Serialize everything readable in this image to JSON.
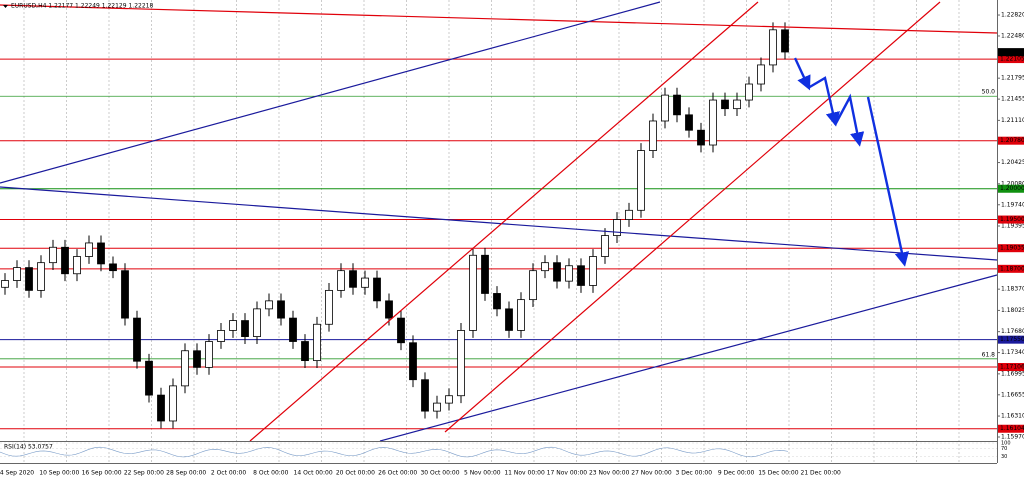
{
  "chart_data": {
    "type": "candlestick",
    "title": "EURUSD,H4  1.22177 1.22249 1.22129 1.22218",
    "current_price": 1.22218,
    "ylim": [
      1.15905,
      1.23064
    ],
    "yticks": [
      {
        "value": 1.2282,
        "label": "1.22820"
      },
      {
        "value": 1.2248,
        "label": "1.22480"
      },
      1.21795,
      1.21455,
      {
        "value": 1.2111,
        "label": "1.21110"
      },
      1.20425,
      {
        "value": 1.2008,
        "label": "1.20080"
      },
      {
        "value": 1.1974,
        "label": "1.19740"
      },
      1.19395,
      {
        "value": 1.1837,
        "label": "1.18370"
      },
      1.18025,
      {
        "value": 1.1768,
        "label": "1.17680"
      },
      {
        "value": 1.1734,
        "label": "1.17340"
      },
      1.16995,
      1.16655,
      {
        "value": 1.1631,
        "label": "1.16310"
      },
      {
        "value": 1.1597,
        "label": "1.15970"
      }
    ],
    "xtick_labels": [
      "4 Sep 2020",
      "10 Sep 00:00",
      "16 Sep 00:00",
      "22 Sep 00:00",
      "28 Sep 00:00",
      "2 Oct 00:00",
      "8 Oct 00:00",
      "14 Oct 00:00",
      "20 Oct 00:00",
      "26 Oct 00:00",
      "30 Oct 00:00",
      "5 Nov 00:00",
      "11 Nov 00:00",
      "17 Nov 00:00",
      "23 Nov 00:00",
      "27 Nov 00:00",
      "3 Dec 00:00",
      "9 Dec 00:00",
      "15 Dec 00:00",
      "21 Dec 00:00"
    ],
    "open": [
      1.184,
      1.1851,
      1.1872,
      1.1835,
      1.188,
      1.1905,
      1.1862,
      1.189,
      1.1912,
      1.1878,
      1.1867,
      1.179,
      1.172,
      1.1665,
      1.1623,
      1.168,
      1.1737,
      1.171,
      1.1752,
      1.177,
      1.1786,
      1.176,
      1.1805,
      1.1818,
      1.179,
      1.1752,
      1.1721,
      1.178,
      1.1835,
      1.1867,
      1.184,
      1.1855,
      1.1818,
      1.179,
      1.175,
      1.169,
      1.1639,
      1.1652,
      1.1664,
      1.177,
      1.1892,
      1.183,
      1.1805,
      1.177,
      1.182,
      1.1867,
      1.188,
      1.185,
      1.1875,
      1.1843,
      1.189,
      1.1924,
      1.195,
      1.1965,
      1.2062,
      1.211,
      1.2152,
      1.212,
      1.2095,
      1.2071,
      1.2144,
      1.213,
      1.2144,
      1.217,
      1.2201,
      1.2258
    ],
    "high": [
      1.1863,
      1.1884,
      1.1884,
      1.1892,
      1.1917,
      1.1917,
      1.1902,
      1.1924,
      1.1924,
      1.189,
      1.1879,
      1.1802,
      1.1732,
      1.1677,
      1.1692,
      1.1749,
      1.1749,
      1.1764,
      1.1782,
      1.1798,
      1.1798,
      1.1817,
      1.183,
      1.183,
      1.1802,
      1.1764,
      1.1792,
      1.1847,
      1.1879,
      1.1879,
      1.1867,
      1.1867,
      1.183,
      1.1802,
      1.1762,
      1.1702,
      1.1664,
      1.1676,
      1.1782,
      1.1904,
      1.1904,
      1.1842,
      1.1817,
      1.1832,
      1.1879,
      1.1892,
      1.1892,
      1.1887,
      1.1887,
      1.1902,
      1.1936,
      1.1962,
      1.1977,
      1.2074,
      1.2122,
      1.2164,
      1.2164,
      1.2132,
      1.2107,
      1.2156,
      1.2156,
      1.2156,
      1.2182,
      1.2213,
      1.227,
      1.227
    ],
    "low": [
      1.1828,
      1.1839,
      1.1823,
      1.1823,
      1.1868,
      1.185,
      1.185,
      1.1878,
      1.1866,
      1.1855,
      1.1778,
      1.1708,
      1.1653,
      1.1611,
      1.1611,
      1.1668,
      1.1698,
      1.1698,
      1.174,
      1.1758,
      1.1748,
      1.1748,
      1.1793,
      1.1778,
      1.174,
      1.1709,
      1.1709,
      1.1768,
      1.1823,
      1.1828,
      1.1828,
      1.1806,
      1.1778,
      1.1738,
      1.1678,
      1.1627,
      1.1627,
      1.164,
      1.1652,
      1.1758,
      1.1818,
      1.1793,
      1.1758,
      1.1758,
      1.1808,
      1.1855,
      1.1838,
      1.1838,
      1.1831,
      1.1831,
      1.1878,
      1.1912,
      1.1938,
      1.1953,
      1.205,
      1.2098,
      1.2108,
      1.2083,
      1.2059,
      1.2059,
      1.2118,
      1.2118,
      1.2132,
      1.2158,
      1.2189,
      1.221
    ],
    "close": [
      1.1851,
      1.1872,
      1.1835,
      1.188,
      1.1905,
      1.1862,
      1.189,
      1.1912,
      1.1878,
      1.1867,
      1.179,
      1.172,
      1.1665,
      1.1623,
      1.168,
      1.1737,
      1.171,
      1.1752,
      1.177,
      1.1786,
      1.176,
      1.1805,
      1.1818,
      1.179,
      1.1752,
      1.1721,
      1.178,
      1.1835,
      1.1867,
      1.184,
      1.1855,
      1.1818,
      1.179,
      1.175,
      1.169,
      1.1639,
      1.1652,
      1.1664,
      1.177,
      1.1892,
      1.183,
      1.1805,
      1.177,
      1.182,
      1.1867,
      1.188,
      1.185,
      1.1875,
      1.1843,
      1.189,
      1.1924,
      1.195,
      1.1965,
      1.2062,
      1.211,
      1.2152,
      1.212,
      1.2095,
      1.2071,
      1.2144,
      1.213,
      1.2144,
      1.217,
      1.2201,
      1.2258,
      1.2222
    ],
    "levels": {
      "values": [
        1.22105,
        1.2078,
        1.2,
        1.195,
        1.19035,
        1.187,
        1.1755,
        1.17106,
        1.16104
      ],
      "value_labels": [
        "1.22105",
        "1.20780",
        "1.20000",
        "1.19500",
        "1.19035",
        "1.18700",
        "1.17550",
        "1.17106",
        "1.16104"
      ],
      "colors": [
        "#e0000a",
        "#e0000a",
        "#109010",
        "#e0000a",
        "#e0000a",
        "#e0000a",
        "#1a1a9c",
        "#e0000a",
        "#e0000a"
      ]
    },
    "fib_levels": {
      "values": [
        1.21502,
        1.17239
      ],
      "labels": [
        "50.0",
        "61.8"
      ],
      "color": "#2e9a2e"
    },
    "rsi": {
      "label": "RSI(14) 53.0757",
      "ylim": [
        0,
        100
      ],
      "yticks": [
        100,
        70,
        30
      ]
    }
  }
}
